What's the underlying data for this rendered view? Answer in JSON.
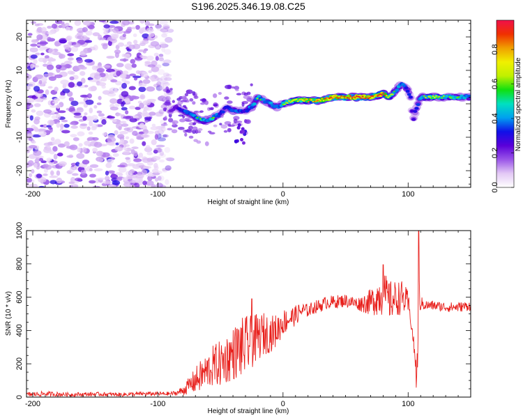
{
  "figure_title": "S196.2025.346.19.08.C25",
  "colors": {
    "snr_line": "#e8201c",
    "axis": "#000000",
    "spectrogram_background": "#ffffff"
  },
  "chart_data": [
    {
      "type": "heatmap",
      "name": "spectrogram",
      "title": "",
      "xlabel": "Height of straight line (km)",
      "ylabel": "Frequency (Hz)",
      "xlim": [
        -205,
        150
      ],
      "ylim": [
        -25,
        25
      ],
      "xticks": [
        -200,
        -100,
        0,
        100
      ],
      "yticks": [
        -20,
        -10,
        0,
        10,
        20
      ],
      "colorbar": {
        "label": "Normalized spectral amplitude",
        "range": [
          0,
          0.97
        ],
        "ticks": [
          "0.0",
          "0.2",
          "0.4",
          "0.6",
          "0.8"
        ],
        "tick_values": [
          0,
          0.2,
          0.4,
          0.6,
          0.8
        ],
        "colormap": [
          "#ffffff",
          "#e3c9f5",
          "#9a55e8",
          "#5a00d9",
          "#1010e8",
          "#00a0f0",
          "#00e0c0",
          "#10e010",
          "#c0f000",
          "#f0f000",
          "#f0a000",
          "#f03000",
          "#f0104a"
        ]
      },
      "description_points": {
        "noise_region_x": [
          -205,
          -90
        ],
        "ridge": {
          "x": [
            -90,
            -85,
            -80,
            -75,
            -70,
            -65,
            -60,
            -55,
            -50,
            -45,
            -40,
            -35,
            -30,
            -25,
            -20,
            -15,
            -10,
            -5,
            0,
            10,
            20,
            30,
            40,
            50,
            60,
            70,
            80,
            85,
            90,
            95,
            100,
            102,
            104,
            106,
            110,
            120,
            130,
            140,
            150
          ],
          "freq": [
            -2,
            -1,
            -2,
            -3,
            -4,
            -5,
            -5,
            -4,
            -3,
            -1,
            -2,
            -2,
            -2,
            -1,
            2,
            1,
            0,
            -1,
            0,
            1,
            1,
            1,
            2,
            2,
            2,
            2,
            3,
            2,
            4,
            6,
            4,
            2,
            -5,
            -2,
            2,
            2,
            2,
            2,
            2
          ],
          "amplitude": [
            0.3,
            0.35,
            0.45,
            0.5,
            0.55,
            0.6,
            0.55,
            0.6,
            0.45,
            0.4,
            0.55,
            0.5,
            0.4,
            0.55,
            0.6,
            0.5,
            0.55,
            0.5,
            0.6,
            0.75,
            0.8,
            0.85,
            0.9,
            0.9,
            0.95,
            0.9,
            0.95,
            0.7,
            0.6,
            0.5,
            0.45,
            0.4,
            0.35,
            0.4,
            0.6,
            0.65,
            0.6,
            0.6,
            0.55
          ]
        }
      }
    },
    {
      "type": "line",
      "name": "snr",
      "title": "",
      "xlabel": "Height of straight line (km)",
      "ylabel": "SNR (10 * v/v)",
      "xlim": [
        -205,
        150
      ],
      "ylim": [
        0,
        1000
      ],
      "xticks": [
        -200,
        -100,
        0,
        100
      ],
      "yticks": [
        0,
        200,
        400,
        600,
        800,
        1000
      ],
      "series": [
        {
          "name": "SNR envelope",
          "x": [
            -205,
            -190,
            -170,
            -150,
            -130,
            -110,
            -90,
            -85,
            -80,
            -75,
            -70,
            -65,
            -60,
            -55,
            -50,
            -45,
            -40,
            -35,
            -30,
            -25,
            -20,
            -15,
            -10,
            -5,
            0,
            5,
            10,
            15,
            20,
            25,
            30,
            35,
            40,
            50,
            60,
            70,
            75,
            80,
            85,
            90,
            95,
            100,
            102,
            104,
            106,
            107,
            108,
            109,
            110,
            112,
            115,
            120,
            130,
            140,
            150
          ],
          "y": [
            15,
            20,
            15,
            18,
            15,
            20,
            20,
            25,
            40,
            70,
            100,
            130,
            160,
            190,
            200,
            230,
            260,
            290,
            300,
            330,
            360,
            380,
            380,
            400,
            450,
            470,
            490,
            520,
            520,
            540,
            550,
            570,
            570,
            580,
            560,
            570,
            600,
            620,
            580,
            590,
            600,
            560,
            470,
            350,
            200,
            150,
            400,
            600,
            560,
            560,
            550,
            550,
            540,
            540,
            550
          ],
          "noise_amplitude": [
            15,
            15,
            12,
            12,
            12,
            12,
            12,
            15,
            30,
            50,
            80,
            100,
            110,
            130,
            140,
            150,
            160,
            180,
            190,
            160,
            140,
            130,
            110,
            100,
            80,
            70,
            60,
            50,
            40,
            40,
            40,
            40,
            40,
            40,
            40,
            80,
            110,
            140,
            120,
            110,
            100,
            80,
            40,
            40,
            60,
            50,
            200,
            150,
            40,
            40,
            30,
            30,
            30,
            30,
            30
          ]
        }
      ],
      "spikes": [
        {
          "x": -25,
          "y": 590
        },
        {
          "x": 80,
          "y": 795
        },
        {
          "x": 108.5,
          "y": 1000
        },
        {
          "x": 106.5,
          "y": 57
        }
      ]
    }
  ]
}
